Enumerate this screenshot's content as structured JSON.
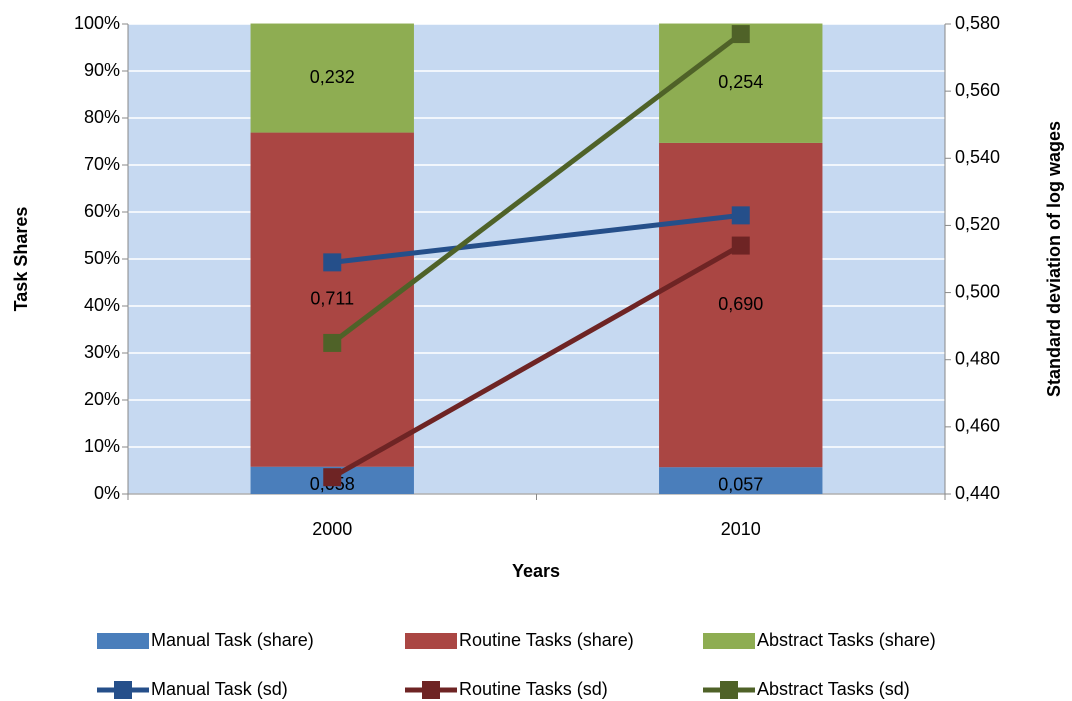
{
  "chart_data": {
    "type": "bar",
    "stacked": true,
    "y_label": "Task Shares",
    "y2_label": "Standard deviation of log wages",
    "x_label": "Years",
    "categories": [
      "2000",
      "2010"
    ],
    "series": [
      {
        "name": "Manual Task (share)",
        "type": "bar",
        "color": "#4a7ebb",
        "values": [
          5.8,
          5.7
        ],
        "value_labels": [
          "0,058",
          "0,057"
        ]
      },
      {
        "name": "Routine Tasks (share)",
        "type": "bar",
        "color": "#aa4643",
        "values": [
          71.1,
          69.0
        ],
        "value_labels": [
          "0,711",
          "0,690"
        ]
      },
      {
        "name": "Abstract Tasks (share)",
        "type": "bar",
        "color": "#8ead52",
        "values": [
          23.2,
          25.4
        ],
        "value_labels": [
          "0,232",
          "0,254"
        ]
      },
      {
        "name": "Manual Task (sd)",
        "type": "line",
        "axis": "y2",
        "color": "#254f8a",
        "values": [
          0.509,
          0.523
        ]
      },
      {
        "name": "Routine Tasks (sd)",
        "type": "line",
        "axis": "y2",
        "color": "#6e2424",
        "values": [
          0.445,
          0.514
        ]
      },
      {
        "name": "Abstract Tasks (sd)",
        "type": "line",
        "axis": "y2",
        "color": "#4f6228",
        "values": [
          0.485,
          0.577
        ]
      }
    ],
    "ylim": [
      0,
      100
    ],
    "yticks": [
      {
        "value": 0,
        "label": "0%"
      },
      {
        "value": 10,
        "label": "10%"
      },
      {
        "value": 20,
        "label": "20%"
      },
      {
        "value": 30,
        "label": "30%"
      },
      {
        "value": 40,
        "label": "40%"
      },
      {
        "value": 50,
        "label": "50%"
      },
      {
        "value": 60,
        "label": "60%"
      },
      {
        "value": 70,
        "label": "70%"
      },
      {
        "value": 80,
        "label": "80%"
      },
      {
        "value": 90,
        "label": "90%"
      },
      {
        "value": 100,
        "label": "100%"
      }
    ],
    "y2lim": [
      0.44,
      0.58
    ],
    "y2ticks": [
      {
        "value": 0.44,
        "label": "0,440"
      },
      {
        "value": 0.46,
        "label": "0,460"
      },
      {
        "value": 0.48,
        "label": "0,480"
      },
      {
        "value": 0.5,
        "label": "0,500"
      },
      {
        "value": 0.52,
        "label": "0,520"
      },
      {
        "value": 0.54,
        "label": "0,540"
      },
      {
        "value": 0.56,
        "label": "0,560"
      },
      {
        "value": 0.58,
        "label": "0,580"
      }
    ],
    "grid": true,
    "plot_background": "#c6d9f1",
    "legend": "bottom"
  }
}
